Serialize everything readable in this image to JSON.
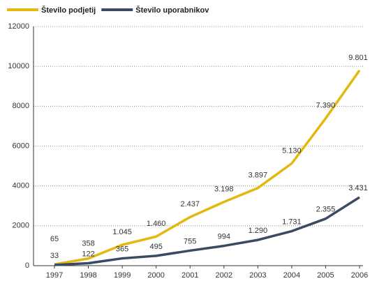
{
  "chart_data": {
    "type": "line",
    "categories": [
      "1997",
      "1998",
      "1999",
      "2000",
      "2001",
      "2002",
      "2003",
      "2004",
      "2005",
      "2006"
    ],
    "series": [
      {
        "name": "Število podjetij",
        "color": "#e3b80f",
        "values": [
          65,
          358,
          1045,
          1460,
          2437,
          3198,
          3897,
          5130,
          7390,
          9801
        ],
        "value_labels": [
          "65",
          "358",
          "1.045",
          "1.460",
          "2.437",
          "3.198",
          "3.897",
          "5.130",
          "7.390",
          "9.801"
        ]
      },
      {
        "name": "Število uporabnikov",
        "color": "#3b4a63",
        "values": [
          33,
          122,
          365,
          495,
          755,
          994,
          1290,
          1731,
          2355,
          3431
        ],
        "value_labels": [
          "33",
          "122",
          "365",
          "495",
          "755",
          "994",
          "1.290",
          "1.731",
          "2.355",
          "3.431"
        ]
      }
    ],
    "ylim": [
      0,
      12000
    ],
    "yticks": [
      0,
      2000,
      4000,
      6000,
      8000,
      10000,
      12000
    ],
    "grid": true
  }
}
